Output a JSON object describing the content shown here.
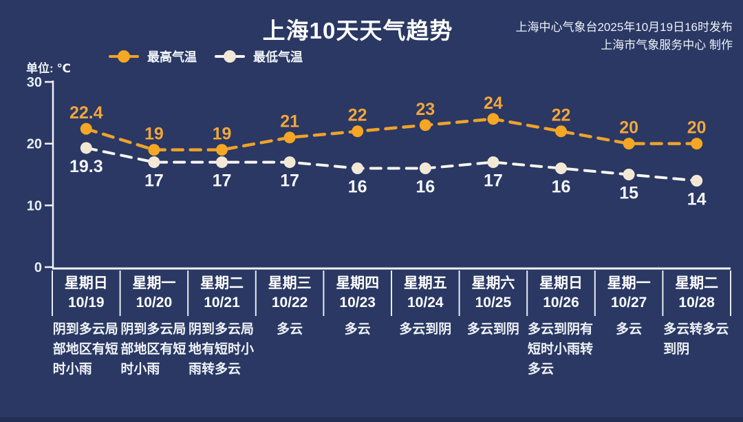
{
  "page": {
    "background": "#2a3863",
    "footer_strip_color": "#233054",
    "accent_orange": "#f2a62e",
    "accent_cream": "#f2e8d5"
  },
  "header": {
    "title": "上海10天天气趋势",
    "publisher_line1": "上海中心气象台2025年10月19日16时发布",
    "publisher_line2": "上海市气象服务中心 制作"
  },
  "unit_label": "单位: ℃",
  "chart_data": {
    "type": "line",
    "title": "上海10天天气趋势",
    "ylabel": "单位: ℃",
    "ylim": [
      0,
      30
    ],
    "yticks": [
      0,
      10,
      20,
      30
    ],
    "grid": false,
    "legend_position": "top-left",
    "line_style": "dashed",
    "categories": [
      {
        "weekday": "星期日",
        "date": "10/19",
        "weather": "阴到多云局部地区有短时小雨"
      },
      {
        "weekday": "星期一",
        "date": "10/20",
        "weather": "阴到多云局部地区有短时小雨"
      },
      {
        "weekday": "星期二",
        "date": "10/21",
        "weather": "阴到多云局地有短时小雨转多云"
      },
      {
        "weekday": "星期三",
        "date": "10/22",
        "weather": "多云"
      },
      {
        "weekday": "星期四",
        "date": "10/23",
        "weather": "多云"
      },
      {
        "weekday": "星期五",
        "date": "10/24",
        "weather": "多云到阴"
      },
      {
        "weekday": "星期六",
        "date": "10/25",
        "weather": "多云到阴"
      },
      {
        "weekday": "星期日",
        "date": "10/26",
        "weather": "多云到阴有短时小雨转多云"
      },
      {
        "weekday": "星期一",
        "date": "10/27",
        "weather": "多云"
      },
      {
        "weekday": "星期二",
        "date": "10/28",
        "weather": "多云转多云到阴"
      }
    ],
    "series": [
      {
        "name": "最高气温",
        "values": [
          22.4,
          19,
          19,
          21,
          22,
          23,
          24,
          22,
          20,
          20
        ],
        "line_color": "#efa22b",
        "marker_color": "#f4a624",
        "label_color": "#f2a63a"
      },
      {
        "name": "最低气温",
        "values": [
          19.3,
          17,
          17,
          17,
          16,
          16,
          17,
          16,
          15,
          14
        ],
        "line_color": "#f7f5f0",
        "marker_color": "#f2e8d5",
        "label_color": "#f4f6fb"
      }
    ]
  }
}
